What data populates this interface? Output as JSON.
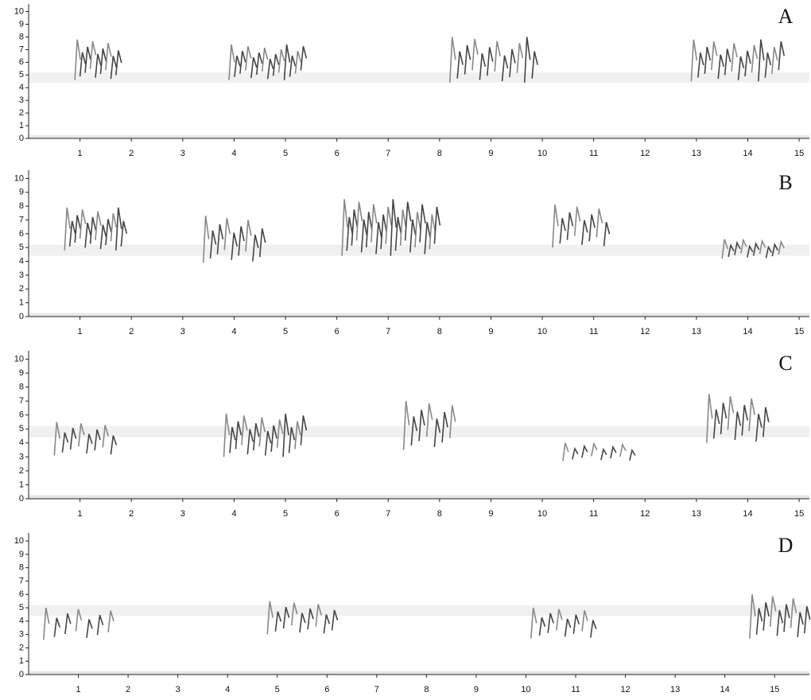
{
  "chart_data": [
    {
      "type": "spectrogram",
      "label": "A",
      "xlim": [
        0,
        15.2
      ],
      "ylim": [
        0,
        10.6
      ],
      "xticks": [
        1,
        2,
        3,
        4,
        5,
        6,
        7,
        8,
        9,
        10,
        11,
        12,
        13,
        14,
        15
      ],
      "yticks": [
        0,
        1,
        2,
        3,
        4,
        5,
        6,
        7,
        8,
        9,
        10
      ]
    },
    {
      "type": "spectrogram",
      "label": "B",
      "xlim": [
        0,
        15.2
      ],
      "ylim": [
        0,
        10.6
      ],
      "xticks": [
        1,
        2,
        3,
        4,
        5,
        6,
        7,
        8,
        9,
        10,
        11,
        12,
        13,
        14,
        15
      ],
      "yticks": [
        0,
        1,
        2,
        3,
        4,
        5,
        6,
        7,
        8,
        9,
        10
      ]
    },
    {
      "type": "spectrogram",
      "label": "C",
      "xlim": [
        0,
        15.2
      ],
      "ylim": [
        0,
        10.6
      ],
      "xticks": [
        1,
        2,
        3,
        4,
        5,
        6,
        7,
        8,
        9,
        10,
        11,
        12,
        13,
        14,
        15
      ],
      "yticks": [
        0,
        1,
        2,
        3,
        4,
        5,
        6,
        7,
        8,
        9,
        10
      ]
    },
    {
      "type": "spectrogram",
      "label": "D",
      "xlim": [
        0,
        15.7
      ],
      "ylim": [
        0,
        10.6
      ],
      "xticks": [
        1,
        2,
        3,
        4,
        5,
        6,
        7,
        8,
        9,
        10,
        11,
        12,
        13,
        14,
        15
      ],
      "yticks": [
        0,
        1,
        2,
        3,
        4,
        5,
        6,
        7,
        8,
        9,
        10
      ]
    }
  ]
}
